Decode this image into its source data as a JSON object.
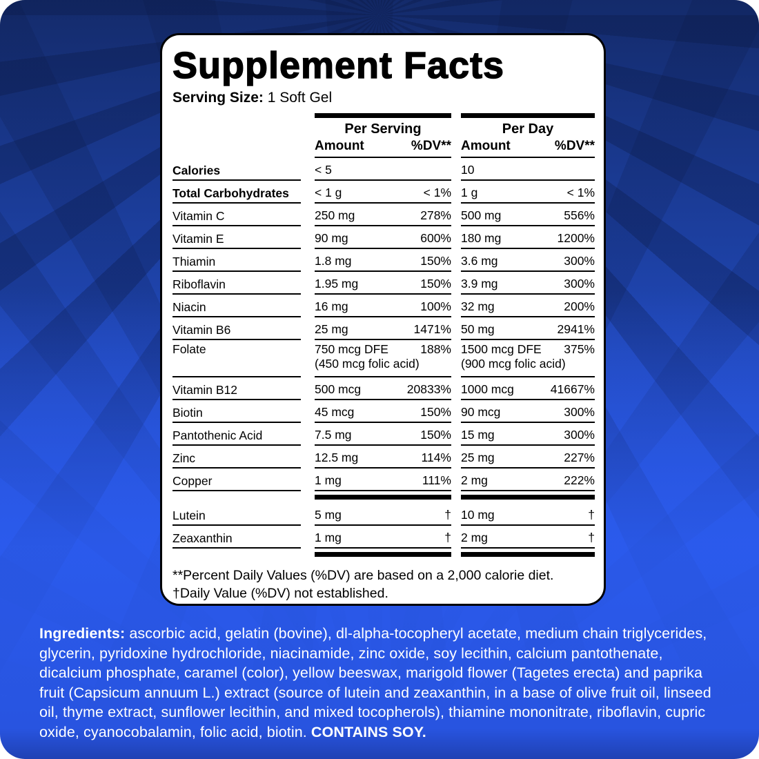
{
  "colors": {
    "background_top": "#142b6b",
    "background_bottom": "#2d5ff5",
    "panel_background": "#ffffff",
    "panel_border": "#000000",
    "ingredients_text": "#ffffff"
  },
  "supplement_facts": {
    "title": "Supplement Facts",
    "serving_size_label": "Serving Size:",
    "serving_size_value": "1 Soft Gel",
    "column_groups": {
      "per_serving": {
        "label": "Per Serving",
        "amount": "Amount",
        "dv": "%DV**"
      },
      "per_day": {
        "label": "Per Day",
        "amount": "Amount",
        "dv": "%DV**"
      }
    },
    "rows": [
      {
        "name": "Calories",
        "bold": true,
        "serving_amount": "< 5",
        "serving_amount_note": "",
        "serving_dv": "",
        "day_amount": "10",
        "day_amount_note": "",
        "day_dv": ""
      },
      {
        "name": "Total Carbohydrates",
        "bold": true,
        "serving_amount": "< 1 g",
        "serving_amount_note": "",
        "serving_dv": "< 1%",
        "day_amount": "1 g",
        "day_amount_note": "",
        "day_dv": "< 1%"
      },
      {
        "name": "Vitamin C",
        "bold": false,
        "serving_amount": "250 mg",
        "serving_amount_note": "",
        "serving_dv": "278%",
        "day_amount": "500 mg",
        "day_amount_note": "",
        "day_dv": "556%"
      },
      {
        "name": "Vitamin E",
        "bold": false,
        "serving_amount": "90 mg",
        "serving_amount_note": "",
        "serving_dv": "600%",
        "day_amount": "180 mg",
        "day_amount_note": "",
        "day_dv": "1200%"
      },
      {
        "name": "Thiamin",
        "bold": false,
        "serving_amount": "1.8 mg",
        "serving_amount_note": "",
        "serving_dv": "150%",
        "day_amount": "3.6 mg",
        "day_amount_note": "",
        "day_dv": "300%"
      },
      {
        "name": "Riboflavin",
        "bold": false,
        "serving_amount": "1.95 mg",
        "serving_amount_note": "",
        "serving_dv": "150%",
        "day_amount": "3.9 mg",
        "day_amount_note": "",
        "day_dv": "300%"
      },
      {
        "name": "Niacin",
        "bold": false,
        "serving_amount": "16 mg",
        "serving_amount_note": "",
        "serving_dv": "100%",
        "day_amount": "32 mg",
        "day_amount_note": "",
        "day_dv": "200%"
      },
      {
        "name": "Vitamin B6",
        "bold": false,
        "serving_amount": "25 mg",
        "serving_amount_note": "",
        "serving_dv": "1471%",
        "day_amount": "50 mg",
        "day_amount_note": "",
        "day_dv": "2941%"
      },
      {
        "name": "Folate",
        "bold": false,
        "serving_amount": "750 mcg DFE",
        "serving_amount_note": "(450 mcg folic acid)",
        "serving_dv": "188%",
        "day_amount": "1500 mcg DFE",
        "day_amount_note": "(900 mcg folic acid)",
        "day_dv": "375%"
      },
      {
        "name": "Vitamin B12",
        "bold": false,
        "serving_amount": "500 mcg",
        "serving_amount_note": "",
        "serving_dv": "20833%",
        "day_amount": "1000 mcg",
        "day_amount_note": "",
        "day_dv": "41667%"
      },
      {
        "name": "Biotin",
        "bold": false,
        "serving_amount": "45 mcg",
        "serving_amount_note": "",
        "serving_dv": "150%",
        "day_amount": "90 mcg",
        "day_amount_note": "",
        "day_dv": "300%"
      },
      {
        "name": "Pantothenic Acid",
        "bold": false,
        "serving_amount": "7.5 mg",
        "serving_amount_note": "",
        "serving_dv": "150%",
        "day_amount": "15 mg",
        "day_amount_note": "",
        "day_dv": "300%"
      },
      {
        "name": "Zinc",
        "bold": false,
        "serving_amount": "12.5 mg",
        "serving_amount_note": "",
        "serving_dv": "114%",
        "day_amount": "25 mg",
        "day_amount_note": "",
        "day_dv": "227%"
      },
      {
        "name": "Copper",
        "bold": false,
        "serving_amount": "1 mg",
        "serving_amount_note": "",
        "serving_dv": "111%",
        "day_amount": "2 mg",
        "day_amount_note": "",
        "day_dv": "222%"
      }
    ],
    "other_rows": [
      {
        "name": "Lutein",
        "bold": false,
        "serving_amount": "5 mg",
        "serving_amount_note": "",
        "serving_dv": "†",
        "day_amount": "10 mg",
        "day_amount_note": "",
        "day_dv": "†"
      },
      {
        "name": "Zeaxanthin",
        "bold": false,
        "serving_amount": "1 mg",
        "serving_amount_note": "",
        "serving_dv": "†",
        "day_amount": "2 mg",
        "day_amount_note": "",
        "day_dv": "†"
      }
    ],
    "footnotes": {
      "daily_value": "**Percent Daily Values (%DV) are based on a 2,000 calorie diet.",
      "not_established": "†Daily Value (%DV) not established."
    }
  },
  "ingredients": {
    "label": "Ingredients:",
    "text": " ascorbic acid, gelatin (bovine), dl-alpha-tocopheryl acetate, medium chain triglycerides, glycerin, pyridoxine hydrochloride, niacinamide, zinc oxide, soy lecithin, calcium pantothenate, dicalcium phosphate, caramel (color), yellow beeswax, marigold flower (Tagetes erecta) and paprika fruit (Capsicum annuum L.) extract (source of lutein and zeaxanthin, in a base of olive fruit oil, linseed oil, thyme extract, sunflower lecithin, and mixed tocopherols), thiamine mononitrate, riboflavin, cupric oxide, cyanocobalamin, folic acid, biotin. ",
    "contains": "CONTAINS SOY."
  }
}
